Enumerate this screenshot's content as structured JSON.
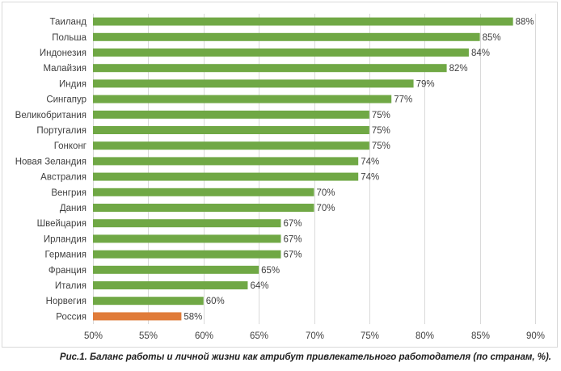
{
  "chart_data": {
    "type": "bar",
    "orientation": "horizontal",
    "categories": [
      "Таиланд",
      "Польша",
      "Индонезия",
      "Малайзия",
      "Индия",
      "Сингапур",
      "Великобритания",
      "Португалия",
      "Гонконг",
      "Новая Зеландия",
      "Австралия",
      "Венгрия",
      "Дания",
      "Швейцария",
      "Ирландия",
      "Германия",
      "Франция",
      "Италия",
      "Норвегия",
      "Россия"
    ],
    "values": [
      88,
      85,
      84,
      82,
      79,
      77,
      75,
      75,
      75,
      74,
      74,
      70,
      70,
      67,
      67,
      67,
      65,
      64,
      60,
      58
    ],
    "value_labels": [
      "88%",
      "85%",
      "84%",
      "82%",
      "79%",
      "77%",
      "75%",
      "75%",
      "75%",
      "74%",
      "74%",
      "70%",
      "70%",
      "67%",
      "67%",
      "67%",
      "65%",
      "64%",
      "60%",
      "58%"
    ],
    "xlim": [
      50,
      90
    ],
    "x_ticks": [
      50,
      55,
      60,
      65,
      70,
      75,
      80,
      85,
      90
    ],
    "x_tick_labels": [
      "50%",
      "55%",
      "60%",
      "65%",
      "70%",
      "75%",
      "80%",
      "85%",
      "90%"
    ],
    "grid": "vertical",
    "colors": {
      "default": "#70a845",
      "highlight": "#e07b39",
      "grid": "#d9d9d9"
    },
    "highlight_category": "Россия"
  },
  "caption": "Рис.1. Баланс работы и личной жизни как атрибут привлекательного работодателя (по странам, %)."
}
